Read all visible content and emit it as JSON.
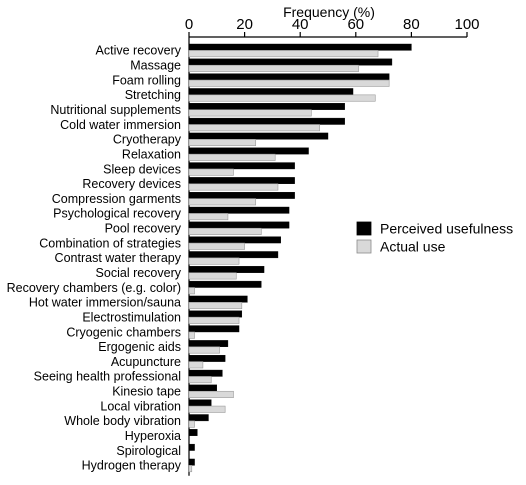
{
  "chart_data": {
    "type": "bar",
    "orientation": "horizontal",
    "title": "",
    "xlabel": "Frequency (%)",
    "ylabel": "",
    "xlim": [
      0,
      100
    ],
    "xticks": [
      0,
      20,
      40,
      60,
      80,
      100
    ],
    "grid": false,
    "legend_position": "right",
    "categories": [
      "Active recovery",
      "Massage",
      "Foam rolling",
      "Stretching",
      "Nutritional supplements",
      "Cold water immersion",
      "Cryotherapy",
      "Relaxation",
      "Sleep devices",
      "Recovery devices",
      "Compression garments",
      "Psychological recovery",
      "Pool recovery",
      "Combination of strategies",
      "Contrast water therapy",
      "Social recovery",
      "Recovery chambers (e.g. color)",
      "Hot water immersion/sauna",
      "Electrostimulation",
      "Cryogenic chambers",
      "Ergogenic aids",
      "Acupuncture",
      "Seeing health professional",
      "Kinesio tape",
      "Local vibration",
      "Whole body vibration",
      "Hyperoxia",
      "Spirological",
      "Hydrogen therapy"
    ],
    "series": [
      {
        "name": "Perceived usefulness",
        "color": "#000000",
        "values": [
          80,
          73,
          72,
          59,
          56,
          56,
          50,
          43,
          38,
          38,
          38,
          36,
          36,
          33,
          32,
          27,
          26,
          21,
          19,
          18,
          14,
          13,
          12,
          10,
          8,
          7,
          3,
          2,
          2
        ]
      },
      {
        "name": "Actual use",
        "color": "#d9d9d9",
        "values": [
          68,
          61,
          72,
          67,
          44,
          47,
          24,
          31,
          16,
          32,
          24,
          14,
          26,
          20,
          18,
          17,
          2,
          19,
          18,
          2,
          11,
          5,
          8,
          16,
          13,
          2,
          0,
          0,
          1
        ]
      }
    ]
  }
}
